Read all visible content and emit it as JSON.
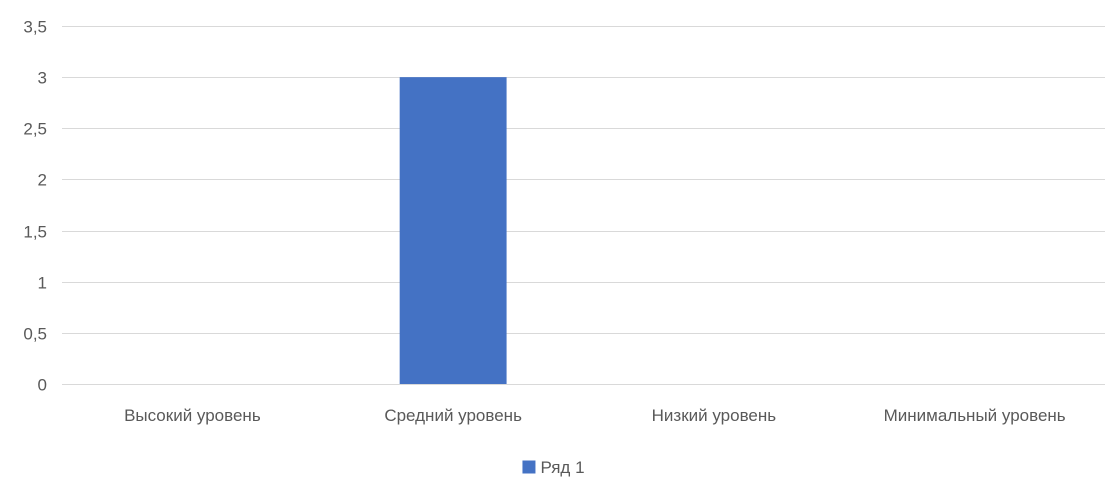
{
  "chart_data": {
    "type": "bar",
    "title": "",
    "xlabel": "",
    "ylabel": "",
    "categories": [
      "Высокий уровень",
      "Средний уровень",
      "Низкий уровень",
      "Минимальный уровень"
    ],
    "series": [
      {
        "name": "Ряд 1",
        "values": [
          0,
          3,
          0,
          0
        ],
        "color": "#4472C4"
      }
    ],
    "yticks": [
      "0",
      "0,5",
      "1",
      "1,5",
      "2",
      "2,5",
      "3",
      "3,5"
    ],
    "ylim": [
      0,
      3.5
    ],
    "grid": true,
    "legend_position": "bottom",
    "colors": {
      "gridline": "#d9d9d9",
      "text": "#595959"
    }
  }
}
